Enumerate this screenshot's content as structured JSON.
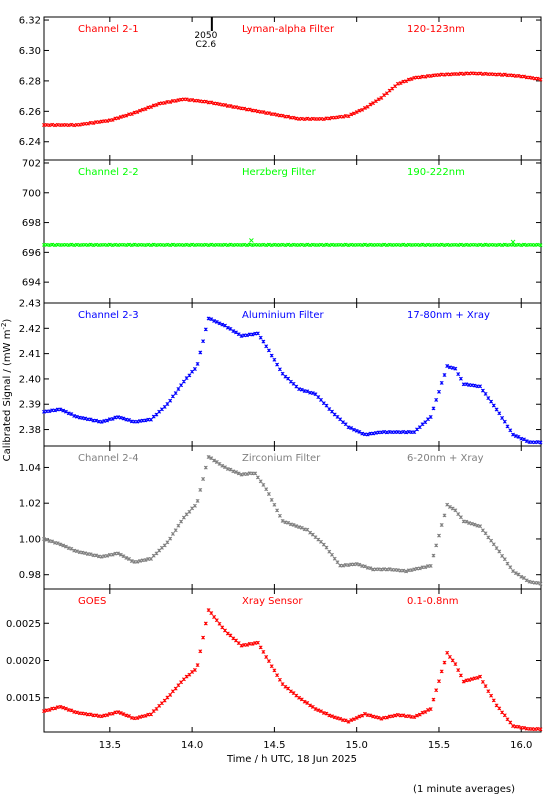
{
  "chart_data": {
    "type": "scatter",
    "ylabel_main": "Calibrated Signal / (mW m",
    "ylabel_sup": "-2",
    "ylabel_end": ")",
    "xlabel": "Time / h UTC, 18 Jun 2025",
    "footnote": "(1 minute averages)",
    "xlim": [
      13.1,
      16.12
    ],
    "xticks": [
      13.5,
      14.0,
      14.5,
      15.0,
      15.5,
      16.0
    ],
    "xticklabels": [
      "13.5",
      "14.0",
      "14.5",
      "15.0",
      "15.5",
      "16.0"
    ],
    "flare_marker": {
      "x": 14.12,
      "labels": [
        "2050",
        "C2.6"
      ]
    },
    "panels": [
      {
        "channel": "Channel 2-1",
        "filter": "Lyman-alpha Filter",
        "band": "120-123nm",
        "color": "#ff0000",
        "ylim": [
          6.228,
          6.322
        ],
        "yticks": [
          6.24,
          6.26,
          6.28,
          6.3,
          6.32
        ],
        "yticklabels": [
          "6.24",
          "6.26",
          "6.28",
          "6.30",
          "6.32"
        ],
        "points": [
          [
            13.1,
            6.251
          ],
          [
            13.3,
            6.251
          ],
          [
            13.5,
            6.254
          ],
          [
            13.65,
            6.259
          ],
          [
            13.8,
            6.265
          ],
          [
            13.95,
            6.268
          ],
          [
            14.1,
            6.266
          ],
          [
            14.3,
            6.262
          ],
          [
            14.5,
            6.258
          ],
          [
            14.65,
            6.255
          ],
          [
            14.8,
            6.255
          ],
          [
            14.95,
            6.257
          ],
          [
            15.05,
            6.262
          ],
          [
            15.15,
            6.269
          ],
          [
            15.25,
            6.278
          ],
          [
            15.35,
            6.282
          ],
          [
            15.5,
            6.284
          ],
          [
            15.7,
            6.285
          ],
          [
            15.9,
            6.284
          ],
          [
            16.0,
            6.283
          ],
          [
            16.12,
            6.281
          ]
        ]
      },
      {
        "channel": "Channel 2-2",
        "filter": "Herzberg Filter",
        "band": "190-222nm",
        "color": "#00ff00",
        "ylim": [
          692.6,
          702.2
        ],
        "yticks": [
          694,
          696,
          698,
          700,
          702
        ],
        "yticklabels": [
          "694",
          "696",
          "698",
          "700",
          "702"
        ],
        "points": [
          [
            13.1,
            696.5
          ],
          [
            14.0,
            696.5
          ],
          [
            14.35,
            696.5
          ],
          [
            15.0,
            696.5
          ],
          [
            16.0,
            696.5
          ],
          [
            16.12,
            696.5
          ]
        ],
        "spikes": [
          [
            14.36,
            696.8
          ],
          [
            15.95,
            696.7
          ]
        ]
      },
      {
        "channel": "Channel 2-3",
        "filter": "Aluminium Filter",
        "band": "17-80nm + Xray",
        "color": "#0000ff",
        "ylim": [
          2.3735,
          2.43
        ],
        "yticks": [
          2.38,
          2.39,
          2.4,
          2.41,
          2.42,
          2.43
        ],
        "yticklabels": [
          "2.38",
          "2.39",
          "2.40",
          "2.41",
          "2.42",
          "2.43"
        ],
        "points": [
          [
            13.1,
            2.387
          ],
          [
            13.2,
            2.388
          ],
          [
            13.3,
            2.385
          ],
          [
            13.45,
            2.383
          ],
          [
            13.55,
            2.385
          ],
          [
            13.65,
            2.383
          ],
          [
            13.75,
            2.384
          ],
          [
            13.85,
            2.39
          ],
          [
            13.95,
            2.399
          ],
          [
            14.03,
            2.405
          ],
          [
            14.1,
            2.424
          ],
          [
            14.2,
            2.421
          ],
          [
            14.3,
            2.417
          ],
          [
            14.4,
            2.418
          ],
          [
            14.45,
            2.413
          ],
          [
            14.55,
            2.402
          ],
          [
            14.65,
            2.396
          ],
          [
            14.75,
            2.394
          ],
          [
            14.85,
            2.387
          ],
          [
            14.95,
            2.381
          ],
          [
            15.05,
            2.378
          ],
          [
            15.15,
            2.379
          ],
          [
            15.25,
            2.379
          ],
          [
            15.35,
            2.379
          ],
          [
            15.45,
            2.385
          ],
          [
            15.55,
            2.405
          ],
          [
            15.6,
            2.404
          ],
          [
            15.65,
            2.398
          ],
          [
            15.75,
            2.397
          ],
          [
            15.85,
            2.388
          ],
          [
            15.95,
            2.378
          ],
          [
            16.05,
            2.375
          ],
          [
            16.12,
            2.375
          ]
        ]
      },
      {
        "channel": "Channel 2-4",
        "filter": "Zirconium Filter",
        "band": "6-20nm + Xray",
        "color": "#7f7f7f",
        "ylim": [
          0.972,
          1.052
        ],
        "yticks": [
          0.98,
          1.0,
          1.02,
          1.04
        ],
        "yticklabels": [
          "0.98",
          "1.00",
          "1.02",
          "1.04"
        ],
        "points": [
          [
            13.1,
            1.0
          ],
          [
            13.2,
            0.997
          ],
          [
            13.3,
            0.993
          ],
          [
            13.45,
            0.99
          ],
          [
            13.55,
            0.992
          ],
          [
            13.65,
            0.987
          ],
          [
            13.75,
            0.989
          ],
          [
            13.85,
            0.998
          ],
          [
            13.95,
            1.012
          ],
          [
            14.03,
            1.02
          ],
          [
            14.1,
            1.046
          ],
          [
            14.2,
            1.04
          ],
          [
            14.3,
            1.036
          ],
          [
            14.38,
            1.037
          ],
          [
            14.45,
            1.028
          ],
          [
            14.55,
            1.01
          ],
          [
            14.7,
            1.005
          ],
          [
            14.8,
            0.997
          ],
          [
            14.9,
            0.985
          ],
          [
            15.0,
            0.986
          ],
          [
            15.1,
            0.983
          ],
          [
            15.2,
            0.983
          ],
          [
            15.3,
            0.982
          ],
          [
            15.45,
            0.985
          ],
          [
            15.55,
            1.019
          ],
          [
            15.6,
            1.016
          ],
          [
            15.65,
            1.01
          ],
          [
            15.75,
            1.007
          ],
          [
            15.85,
            0.995
          ],
          [
            15.95,
            0.982
          ],
          [
            16.05,
            0.976
          ],
          [
            16.12,
            0.975
          ]
        ]
      },
      {
        "channel": "GOES",
        "filter": "Xray Sensor",
        "band": "0.1-0.8nm",
        "color": "#ff0000",
        "ylim": [
          0.00104,
          0.00296
        ],
        "yticks": [
          0.0015,
          0.002,
          0.0025
        ],
        "yticklabels": [
          "0.0015",
          "0.0020",
          "0.0025"
        ],
        "points": [
          [
            13.1,
            0.00132
          ],
          [
            13.2,
            0.00138
          ],
          [
            13.3,
            0.0013
          ],
          [
            13.45,
            0.00125
          ],
          [
            13.55,
            0.00131
          ],
          [
            13.65,
            0.00122
          ],
          [
            13.75,
            0.00128
          ],
          [
            13.85,
            0.0015
          ],
          [
            13.95,
            0.00175
          ],
          [
            14.03,
            0.0019
          ],
          [
            14.1,
            0.00268
          ],
          [
            14.2,
            0.0024
          ],
          [
            14.3,
            0.0022
          ],
          [
            14.4,
            0.00224
          ],
          [
            14.45,
            0.00205
          ],
          [
            14.55,
            0.00168
          ],
          [
            14.65,
            0.0015
          ],
          [
            14.75,
            0.00135
          ],
          [
            14.85,
            0.00125
          ],
          [
            14.95,
            0.00118
          ],
          [
            15.05,
            0.00128
          ],
          [
            15.15,
            0.00122
          ],
          [
            15.25,
            0.00127
          ],
          [
            15.35,
            0.00124
          ],
          [
            15.45,
            0.00135
          ],
          [
            15.55,
            0.0021
          ],
          [
            15.6,
            0.00195
          ],
          [
            15.65,
            0.00172
          ],
          [
            15.75,
            0.00178
          ],
          [
            15.85,
            0.0014
          ],
          [
            15.95,
            0.00112
          ],
          [
            16.05,
            0.00108
          ],
          [
            16.12,
            0.00108
          ]
        ]
      }
    ]
  }
}
